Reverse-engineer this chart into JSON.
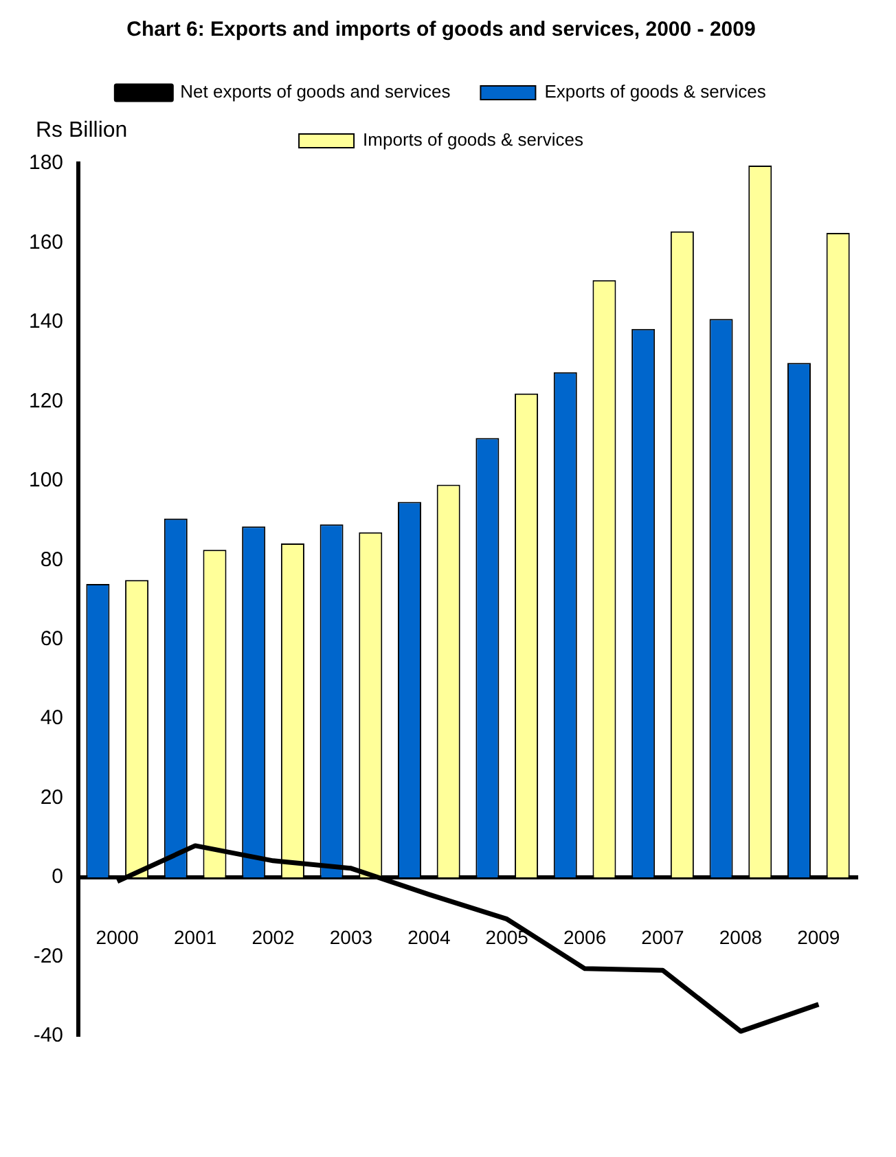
{
  "chart_data": {
    "type": "bar",
    "title": "Chart 6: Exports and imports of goods and services, 2000 - 2009",
    "ylabel": "Rs Billion",
    "categories": [
      "2000",
      "2001",
      "2002",
      "2003",
      "2004",
      "2005",
      "2006",
      "2007",
      "2008",
      "2009"
    ],
    "series": [
      {
        "name": "Exports of goods & services",
        "color": "#0066cc",
        "values": [
          74,
          90.5,
          88.5,
          89,
          94.7,
          110.8,
          127.4,
          138.3,
          140.8,
          129.7
        ]
      },
      {
        "name": "Imports of goods & services",
        "color": "#ffff99",
        "values": [
          75,
          82.6,
          84.2,
          87,
          99,
          122,
          150.6,
          162.9,
          179.5,
          162.5
        ]
      },
      {
        "name": "Net exports of goods and services",
        "type": "line",
        "color": "#000000",
        "values": [
          -1,
          8,
          4.2,
          2.3,
          -4.3,
          -10.5,
          -23,
          -23.4,
          -38.8,
          -32
        ]
      }
    ],
    "ylim": [
      -40,
      180
    ],
    "yticks": [
      -40,
      -20,
      0,
      20,
      40,
      60,
      80,
      100,
      120,
      140,
      160,
      180
    ],
    "grid": false,
    "legend": "top",
    "marker": "none"
  }
}
